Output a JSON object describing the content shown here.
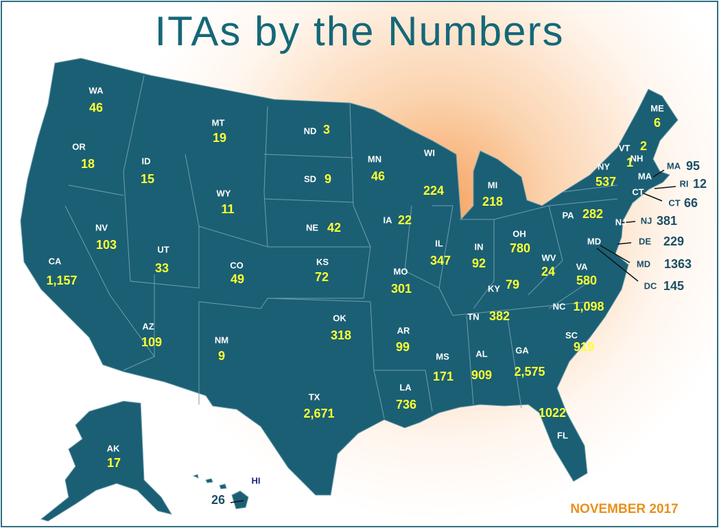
{
  "title": "ITAs by the Numbers",
  "footnote": "NOVEMBER 2017",
  "states": [
    {
      "abbr": "WA",
      "value": "46"
    },
    {
      "abbr": "OR",
      "value": "18"
    },
    {
      "abbr": "ID",
      "value": "15"
    },
    {
      "abbr": "MT",
      "value": "19"
    },
    {
      "abbr": "ND",
      "value": "3"
    },
    {
      "abbr": "SD",
      "value": "9"
    },
    {
      "abbr": "MN",
      "value": "46"
    },
    {
      "abbr": "WI",
      "value": "224"
    },
    {
      "abbr": "MI",
      "value": "218"
    },
    {
      "abbr": "WY",
      "value": "11"
    },
    {
      "abbr": "NE",
      "value": "42"
    },
    {
      "abbr": "IA",
      "value": "22"
    },
    {
      "abbr": "NV",
      "value": "103"
    },
    {
      "abbr": "UT",
      "value": "33"
    },
    {
      "abbr": "CO",
      "value": "49"
    },
    {
      "abbr": "KS",
      "value": "72"
    },
    {
      "abbr": "MO",
      "value": "301"
    },
    {
      "abbr": "IL",
      "value": "347"
    },
    {
      "abbr": "IN",
      "value": "92"
    },
    {
      "abbr": "OH",
      "value": "780"
    },
    {
      "abbr": "CA",
      "value": "1,157"
    },
    {
      "abbr": "AZ",
      "value": "109"
    },
    {
      "abbr": "NM",
      "value": "9"
    },
    {
      "abbr": "OK",
      "value": "318"
    },
    {
      "abbr": "AR",
      "value": "99"
    },
    {
      "abbr": "TN",
      "value": "382"
    },
    {
      "abbr": "KY",
      "value": "79"
    },
    {
      "abbr": "WV",
      "value": "24"
    },
    {
      "abbr": "VA",
      "value": "580"
    },
    {
      "abbr": "NC",
      "value": "1,098"
    },
    {
      "abbr": "SC",
      "value": "919"
    },
    {
      "abbr": "GA",
      "value": "2,575"
    },
    {
      "abbr": "AL",
      "value": "909"
    },
    {
      "abbr": "MS",
      "value": "171"
    },
    {
      "abbr": "LA",
      "value": "736"
    },
    {
      "abbr": "TX",
      "value": "2,671"
    },
    {
      "abbr": "FL",
      "value": "1022"
    },
    {
      "abbr": "PA",
      "value": "282"
    },
    {
      "abbr": "NY",
      "value": "537"
    },
    {
      "abbr": "NJ",
      "value": "381"
    },
    {
      "abbr": "ME",
      "value": "6"
    },
    {
      "abbr": "VT",
      "value": "2"
    },
    {
      "abbr": "NH",
      "value": "1"
    },
    {
      "abbr": "MA",
      "value": "95"
    },
    {
      "abbr": "RI",
      "value": "12"
    },
    {
      "abbr": "CT",
      "value": "66"
    },
    {
      "abbr": "DE",
      "value": "229"
    },
    {
      "abbr": "MD",
      "value": "1363"
    },
    {
      "abbr": "DC",
      "value": "145"
    },
    {
      "abbr": "AK",
      "value": "17"
    },
    {
      "abbr": "HI",
      "value": "26"
    }
  ]
}
